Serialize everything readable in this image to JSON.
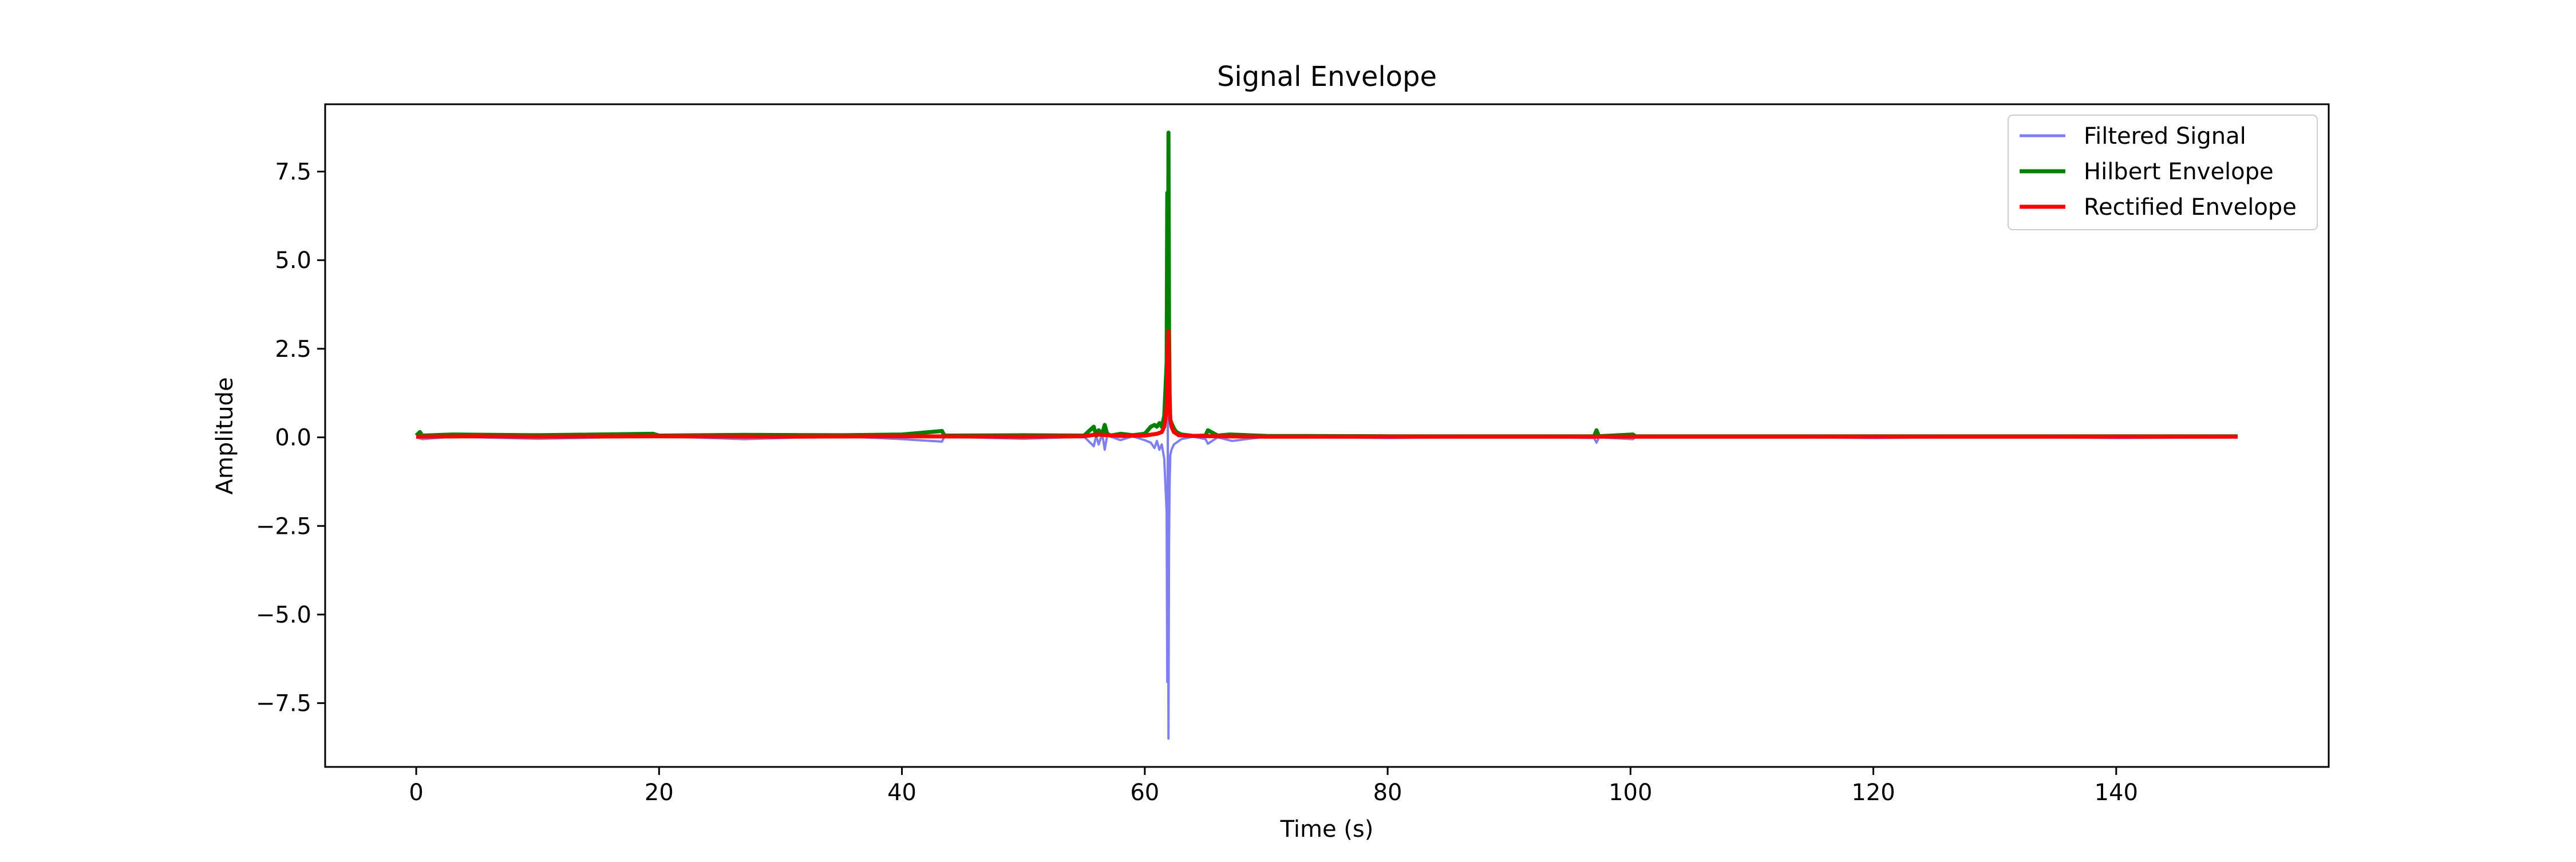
{
  "chart_data": {
    "type": "line",
    "title": "Signal Envelope",
    "xlabel": "Time (s)",
    "ylabel": "Amplitude",
    "xlim": [
      -7.5,
      157.5
    ],
    "ylim": [
      -9.3,
      9.4
    ],
    "x_ticks": [
      0,
      20,
      40,
      60,
      80,
      100,
      120,
      140
    ],
    "y_ticks": [
      -7.5,
      -5.0,
      -2.5,
      0.0,
      2.5,
      5.0,
      7.5
    ],
    "x_tick_labels": [
      "0",
      "20",
      "40",
      "60",
      "80",
      "100",
      "120",
      "140"
    ],
    "y_tick_labels": [
      "−7.5",
      "−5.0",
      "−2.5",
      "0.0",
      "2.5",
      "5.0",
      "7.5"
    ],
    "grid": false,
    "legend_position": "top-right",
    "series": [
      {
        "name": "Filtered Signal",
        "color": "#7f7fef",
        "x": [
          0,
          0.5,
          3,
          10,
          20,
          27,
          35,
          40,
          43.3,
          43.5,
          50,
          55,
          55.8,
          56.0,
          56.2,
          56.5,
          56.7,
          56.9,
          57.2,
          58,
          59,
          60,
          60.5,
          60.8,
          61.0,
          61.2,
          61.4,
          61.6,
          61.8,
          61.85,
          61.9,
          61.95,
          62.0,
          62.05,
          62.1,
          62.2,
          62.4,
          62.6,
          63,
          64,
          65,
          65.2,
          66,
          67.2,
          70,
          80,
          90,
          97.0,
          97.2,
          97.4,
          100.2,
          100.4,
          110,
          120,
          130,
          140,
          150
        ],
        "y": [
          0.0,
          -0.05,
          0.02,
          -0.04,
          0.03,
          -0.05,
          0.03,
          -0.05,
          -0.12,
          0.02,
          -0.04,
          0.02,
          -0.25,
          0.05,
          -0.2,
          0.1,
          -0.35,
          0.05,
          0.02,
          -0.08,
          0.03,
          -0.08,
          -0.15,
          -0.3,
          -0.1,
          -0.35,
          -0.2,
          -0.6,
          -2.1,
          -6.9,
          1.0,
          -8.5,
          -3.0,
          -1.2,
          -0.5,
          -0.35,
          -0.2,
          -0.15,
          -0.05,
          0.02,
          -0.05,
          -0.18,
          0.0,
          -0.1,
          0.02,
          -0.02,
          0.02,
          -0.02,
          -0.15,
          0.0,
          -0.05,
          0.0,
          0.02,
          -0.02,
          0.02,
          -0.02,
          0.0
        ]
      },
      {
        "name": "Hilbert Envelope",
        "color": "#008000",
        "x": [
          0,
          0.3,
          0.5,
          3,
          10,
          19.5,
          20,
          27,
          35,
          40,
          43.3,
          43.5,
          50,
          55,
          55.8,
          56.0,
          56.2,
          56.5,
          56.7,
          56.9,
          57.2,
          58,
          59,
          60,
          60.5,
          60.8,
          61.0,
          61.2,
          61.4,
          61.6,
          61.8,
          61.85,
          61.9,
          61.95,
          62.0,
          62.05,
          62.1,
          62.2,
          62.4,
          62.6,
          63,
          64,
          65,
          65.2,
          66,
          67,
          70,
          80,
          90,
          97.0,
          97.2,
          97.4,
          100.2,
          100.4,
          110,
          120,
          130,
          140,
          150
        ],
        "y": [
          0.05,
          0.15,
          0.05,
          0.08,
          0.06,
          0.1,
          0.05,
          0.07,
          0.06,
          0.08,
          0.18,
          0.05,
          0.06,
          0.05,
          0.3,
          0.05,
          0.2,
          0.1,
          0.35,
          0.1,
          0.05,
          0.1,
          0.06,
          0.1,
          0.3,
          0.35,
          0.3,
          0.4,
          0.3,
          0.6,
          2.1,
          6.9,
          1.5,
          8.6,
          3.0,
          1.2,
          0.5,
          0.4,
          0.25,
          0.15,
          0.08,
          0.04,
          0.05,
          0.2,
          0.05,
          0.08,
          0.04,
          0.03,
          0.03,
          0.03,
          0.2,
          0.03,
          0.08,
          0.03,
          0.03,
          0.03,
          0.03,
          0.03,
          0.03
        ]
      },
      {
        "name": "Rectified Envelope",
        "color": "#ff0000",
        "x": [
          0,
          5,
          10,
          20,
          30,
          40,
          50,
          55,
          56,
          57,
          58,
          60,
          61.0,
          61.4,
          61.6,
          61.8,
          61.9,
          61.95,
          62.0,
          62.1,
          62.2,
          62.4,
          62.8,
          64,
          66,
          70,
          80,
          90,
          100,
          110,
          120,
          130,
          140,
          150
        ],
        "y": [
          0.02,
          0.03,
          0.02,
          0.03,
          0.02,
          0.03,
          0.02,
          0.03,
          0.08,
          0.06,
          0.04,
          0.05,
          0.1,
          0.15,
          0.3,
          0.8,
          2.2,
          3.0,
          1.2,
          0.5,
          0.3,
          0.15,
          0.06,
          0.04,
          0.03,
          0.02,
          0.02,
          0.02,
          0.02,
          0.02,
          0.02,
          0.02,
          0.02,
          0.02
        ]
      }
    ]
  }
}
